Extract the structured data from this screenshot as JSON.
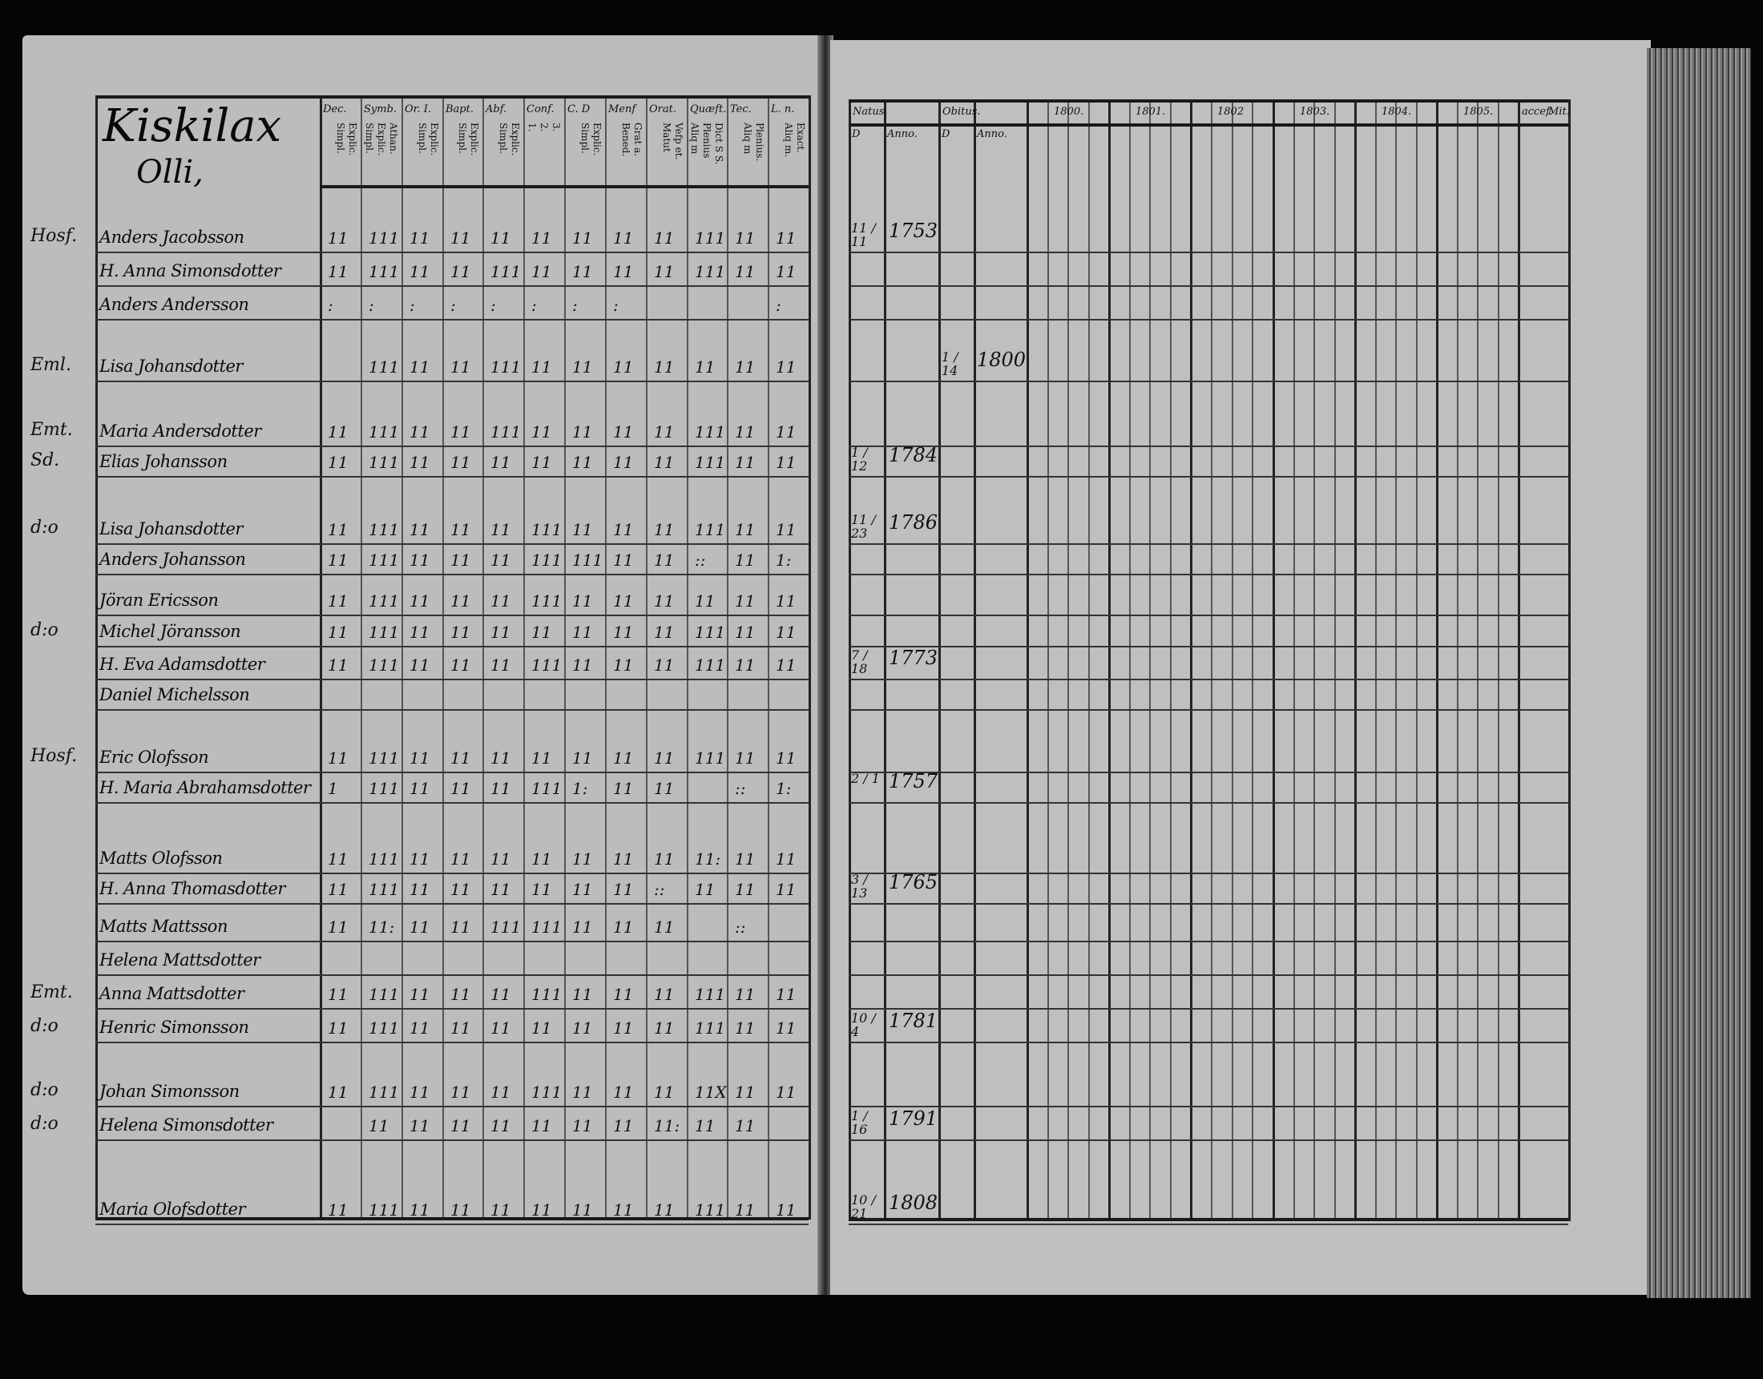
{
  "left_page": {
    "village": "Kiskilax",
    "farm": "Olli,",
    "columns": [
      {
        "head": "Dec.",
        "sub": [
          "Explic.",
          "Simpl."
        ]
      },
      {
        "head": "Symb.",
        "sub": [
          "Athan.",
          "Explic.",
          "Simpl."
        ]
      },
      {
        "head": "Or. I.",
        "sub": [
          "Explic.",
          "Simpl."
        ]
      },
      {
        "head": "Bapt.",
        "sub": [
          "Explic.",
          "Simpl."
        ]
      },
      {
        "head": "Abf.",
        "sub": [
          "Explic.",
          "Simpl."
        ]
      },
      {
        "head": "Conf.",
        "sub": [
          "3.",
          "2.",
          "1."
        ]
      },
      {
        "head": "C. D",
        "sub": [
          "Explic.",
          "Simpl."
        ]
      },
      {
        "head": "Menf",
        "sub": [
          "Grat a.",
          "Bened."
        ]
      },
      {
        "head": "Orat.",
        "sub": [
          "Vefp et.",
          "Matut"
        ]
      },
      {
        "head": "Quæft.",
        "sub": [
          "Dict S S.",
          "Plenius",
          "Aliq m"
        ]
      },
      {
        "head": "Tec.",
        "sub": [
          "Plenius.",
          "Aliq m"
        ]
      },
      {
        "head": "L. n.",
        "sub": [
          "Exact.",
          "Aliq m."
        ]
      }
    ],
    "rows": [
      {
        "margin": "Hosf.",
        "name": "Anders Jacobsson",
        "marks": [
          "11",
          "111",
          "11",
          "11",
          "11",
          "11",
          "11",
          "11",
          "11",
          "111",
          "11",
          "11"
        ]
      },
      {
        "margin": "",
        "name": "H. Anna Simonsdotter",
        "marks": [
          "11",
          "111",
          "11",
          "11",
          "111",
          "11",
          "11",
          "11",
          "11",
          "111",
          "11",
          "11"
        ]
      },
      {
        "margin": "",
        "name": "Anders Andersson",
        "marks": [
          ":",
          ":",
          ":",
          ":",
          ":",
          ":",
          ":",
          ":",
          "",
          "",
          "",
          ":"
        ]
      },
      {
        "margin": "Eml.",
        "name": "Lisa Johansdotter",
        "marks": [
          "",
          "111",
          "11",
          "11",
          "111",
          "11",
          "11",
          "11",
          "11",
          "11",
          "11",
          "11"
        ]
      },
      {
        "margin": "Emt.",
        "name": "Maria Andersdotter",
        "marks": [
          "11",
          "111",
          "11",
          "11",
          "111",
          "11",
          "11",
          "11",
          "11",
          "111",
          "11",
          "11"
        ]
      },
      {
        "margin": "Sd.",
        "name": "Elias Johansson",
        "marks": [
          "11",
          "111",
          "11",
          "11",
          "11",
          "11",
          "11",
          "11",
          "11",
          "111",
          "11",
          "11"
        ]
      },
      {
        "margin": "d:o",
        "name": "Lisa Johansdotter",
        "marks": [
          "11",
          "111",
          "11",
          "11",
          "11",
          "111",
          "11",
          "11",
          "11",
          "111",
          "11",
          "11"
        ]
      },
      {
        "margin": "",
        "name": "Anders Johansson",
        "marks": [
          "11",
          "111",
          "11",
          "11",
          "11",
          "111",
          "111",
          "11",
          "11",
          "::",
          "11",
          "1:"
        ]
      },
      {
        "margin": "",
        "name": "Jöran Ericsson",
        "marks": [
          "11",
          "111",
          "11",
          "11",
          "11",
          "111",
          "11",
          "11",
          "11",
          "11",
          "11",
          "11"
        ]
      },
      {
        "margin": "d:o",
        "name": "Michel Jöransson",
        "marks": [
          "11",
          "111",
          "11",
          "11",
          "11",
          "11",
          "11",
          "11",
          "11",
          "111",
          "11",
          "11"
        ]
      },
      {
        "margin": "",
        "name": "H. Eva Adamsdotter",
        "marks": [
          "11",
          "111",
          "11",
          "11",
          "11",
          "111",
          "11",
          "11",
          "11",
          "111",
          "11",
          "11"
        ]
      },
      {
        "margin": "",
        "name": "Daniel Michelsson",
        "marks": [
          "",
          "",
          "",
          "",
          "",
          "",
          "",
          "",
          "",
          "",
          "",
          ""
        ]
      },
      {
        "margin": "Hosf.",
        "name": "Eric Olofsson",
        "marks": [
          "11",
          "111",
          "11",
          "11",
          "11",
          "11",
          "11",
          "11",
          "11",
          "111",
          "11",
          "11"
        ]
      },
      {
        "margin": "",
        "name": "H. Maria Abrahamsdotter",
        "marks": [
          "1",
          "111",
          "11",
          "11",
          "11",
          "111",
          "1:",
          "11",
          "11",
          "",
          "::",
          "1:"
        ]
      },
      {
        "margin": "",
        "name": "Matts Olofsson",
        "marks": [
          "11",
          "111",
          "11",
          "11",
          "11",
          "11",
          "11",
          "11",
          "11",
          "11:",
          "11",
          "11"
        ]
      },
      {
        "margin": "",
        "name": "H. Anna Thomasdotter",
        "marks": [
          "11",
          "111",
          "11",
          "11",
          "11",
          "11",
          "11",
          "11",
          "::",
          "11",
          "11",
          "11"
        ]
      },
      {
        "margin": "",
        "name": "Matts Mattsson",
        "marks": [
          "11",
          "11:",
          "11",
          "11",
          "111",
          "111",
          "11",
          "11",
          "11",
          "",
          "::",
          ""
        ]
      },
      {
        "margin": "",
        "name": "Helena Mattsdotter",
        "marks": [
          "",
          "",
          "",
          "",
          "",
          "",
          "",
          "",
          "",
          "",
          "",
          ""
        ]
      },
      {
        "margin": "Emt.",
        "name": "Anna Mattsdotter",
        "marks": [
          "11",
          "111",
          "11",
          "11",
          "11",
          "111",
          "11",
          "11",
          "11",
          "111",
          "11",
          "11"
        ]
      },
      {
        "margin": "d:o",
        "name": "Henric Simonsson",
        "marks": [
          "11",
          "111",
          "11",
          "11",
          "11",
          "11",
          "11",
          "11",
          "11",
          "111",
          "11",
          "11"
        ]
      },
      {
        "margin": "d:o",
        "name": "Johan Simonsson",
        "marks": [
          "11",
          "111",
          "11",
          "11",
          "11",
          "111",
          "11",
          "11",
          "11",
          "11X",
          "11",
          "11"
        ]
      },
      {
        "margin": "d:o",
        "name": "Helena Simonsdotter",
        "marks": [
          "",
          "11",
          "11",
          "11",
          "11",
          "11",
          "11",
          "11",
          "11:",
          "11",
          "11",
          ""
        ]
      },
      {
        "margin": "",
        "name": "Maria Olofsdotter",
        "marks": [
          "11",
          "111",
          "11",
          "11",
          "11",
          "11",
          "11",
          "11",
          "11",
          "111",
          "11",
          "11"
        ]
      }
    ]
  },
  "right_page": {
    "headers": [
      "Natus.",
      "Obitus.",
      "1800.",
      "1801.",
      "1802",
      "1803.",
      "1804.",
      "1805.",
      "accef.",
      "Mit."
    ],
    "subheaders": [
      "D",
      "Anno.",
      "D",
      "Anno."
    ],
    "births": [
      {
        "row": 0,
        "day": "11 / 11",
        "year": "1753"
      },
      {
        "row": 3,
        "day": "1 / 14",
        "year": "1800",
        "obit": true
      },
      {
        "row": 5,
        "day": "1 / 12",
        "year": "1784"
      },
      {
        "row": 6,
        "day": "11 / 23",
        "year": "1786"
      },
      {
        "row": 10,
        "day": "7 / 18",
        "year": "1773"
      },
      {
        "row": 13,
        "day": "2 / 1",
        "year": "1757"
      },
      {
        "row": 15,
        "day": "3 / 13",
        "year": "1765"
      },
      {
        "row": 19,
        "day": "10 / 4",
        "year": "1781"
      },
      {
        "row": 21,
        "day": "1 / 16",
        "year": "1791"
      },
      {
        "row": 22,
        "day": "10 / 21",
        "year": "1808"
      }
    ]
  }
}
